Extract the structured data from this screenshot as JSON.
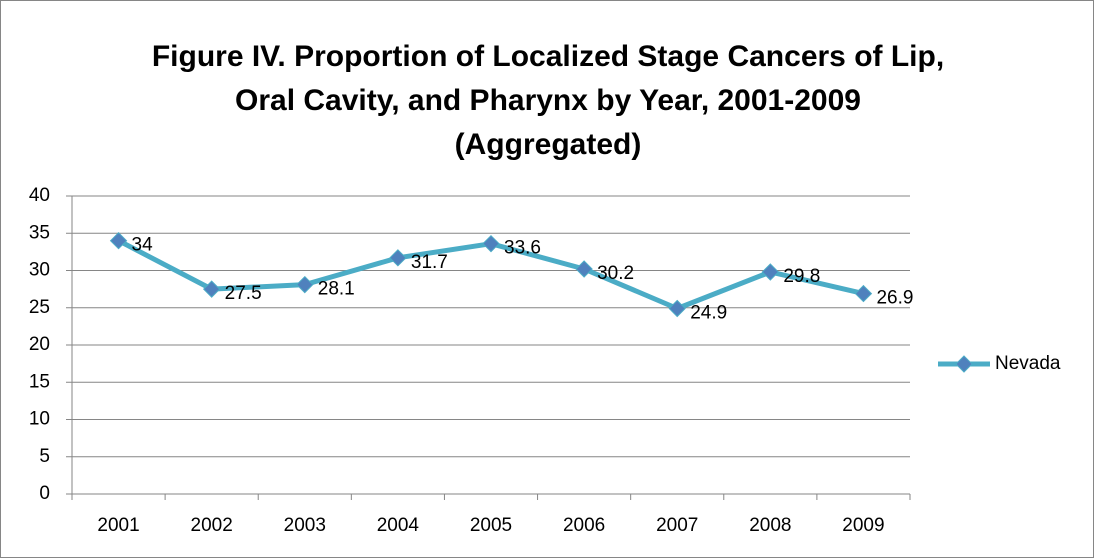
{
  "chart_data": {
    "type": "line",
    "title": [
      "Figure IV. Proportion of Localized Stage Cancers of Lip,",
      "Oral Cavity, and Pharynx by Year, 2001-2009",
      "(Aggregated)"
    ],
    "categories": [
      "2001",
      "2002",
      "2003",
      "2004",
      "2005",
      "2006",
      "2007",
      "2008",
      "2009"
    ],
    "series": [
      {
        "name": "Nevada",
        "color": "#4bacc6",
        "marker_color": "#4f81bd",
        "values": [
          34,
          27.5,
          28.1,
          31.7,
          33.6,
          30.2,
          24.9,
          29.8,
          26.9
        ]
      }
    ],
    "ylim": [
      0,
      40
    ],
    "yticks": [
      0,
      5,
      10,
      15,
      20,
      25,
      30,
      35,
      40
    ],
    "grid": true,
    "legend": "right",
    "data_labels": true
  }
}
